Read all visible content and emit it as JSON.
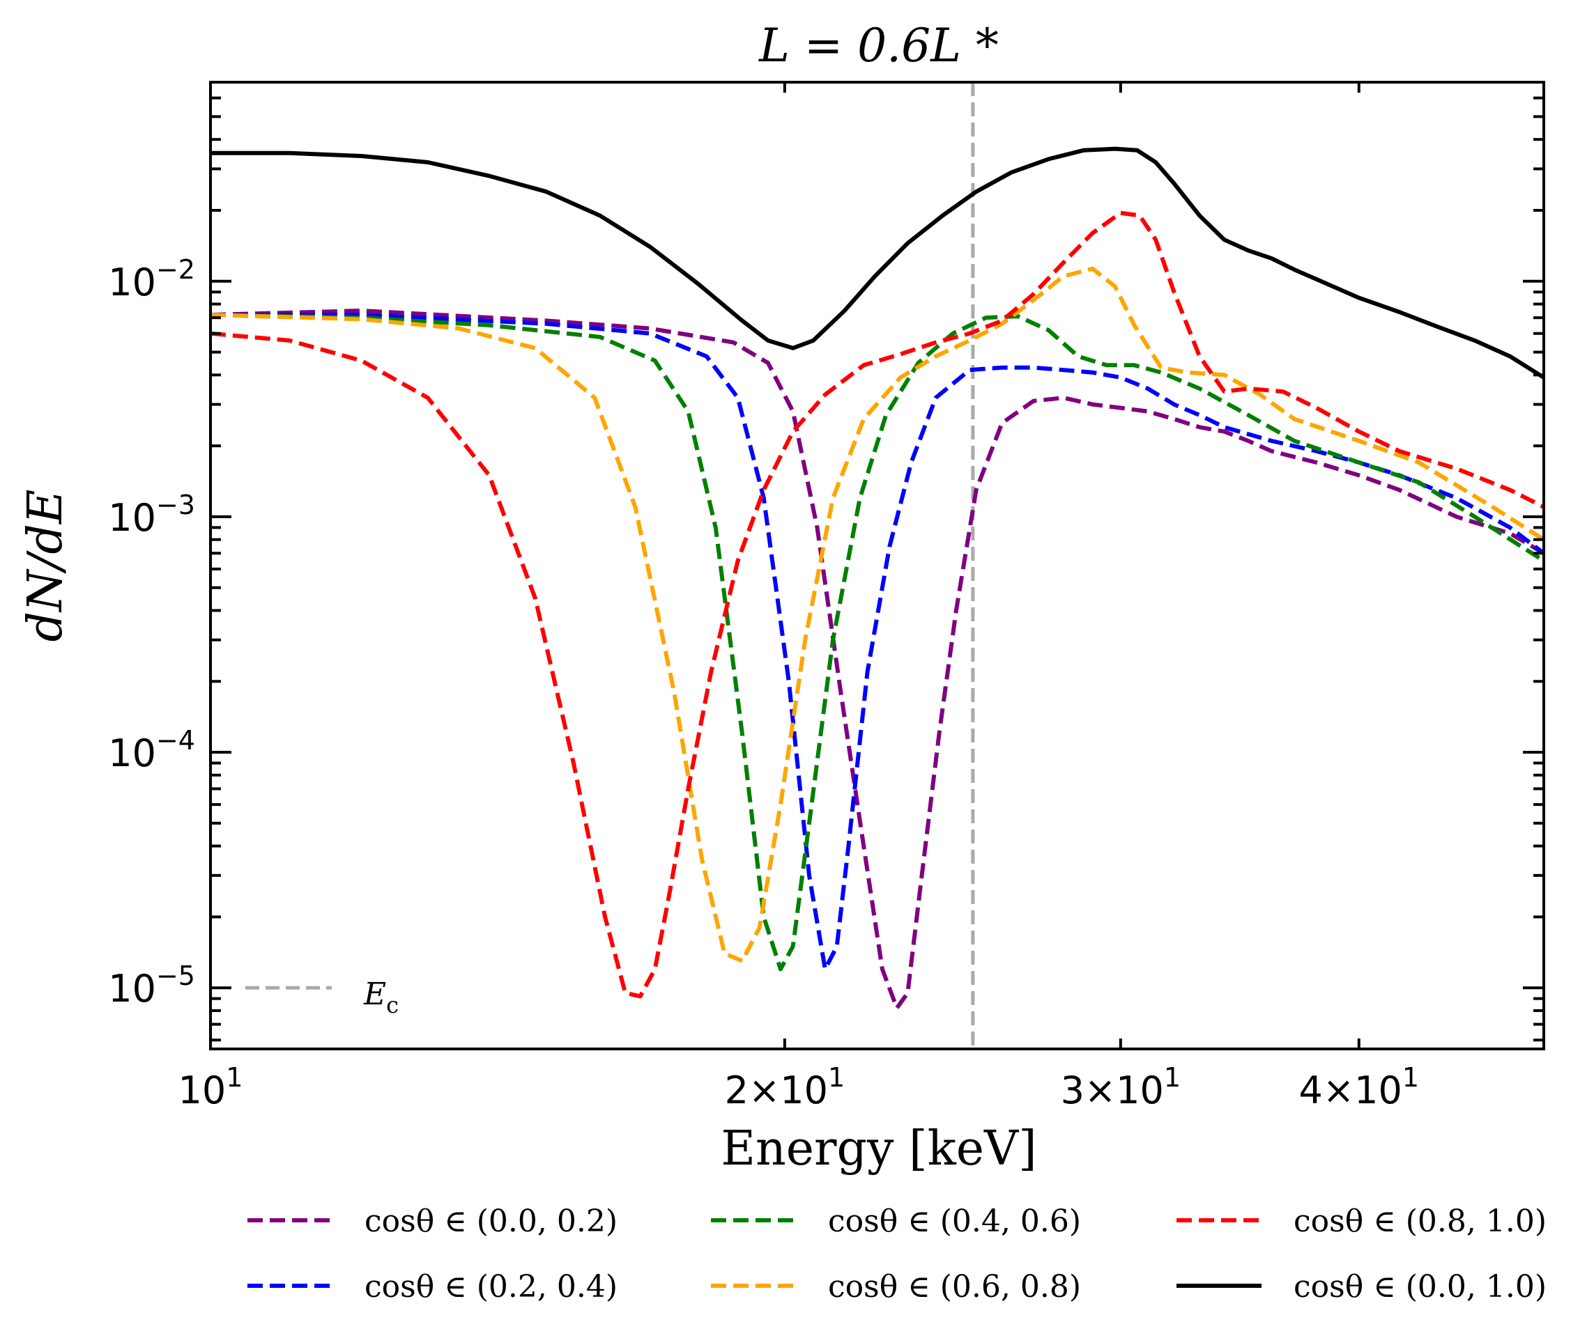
{
  "chart_data": {
    "type": "line",
    "title": "L = 0.6L *",
    "xlabel": "Energy [keV]",
    "ylabel": "dN/dE",
    "xscale": "log",
    "yscale": "log",
    "xlim": [
      10,
      50
    ],
    "ylim": [
      5.5e-06,
      0.07
    ],
    "grid": false,
    "x_ticks": [
      {
        "value": 10,
        "base": "10",
        "exp": "1",
        "coef": ""
      },
      {
        "value": 20,
        "base": "10",
        "exp": "1",
        "coef": "2×"
      },
      {
        "value": 30,
        "base": "10",
        "exp": "1",
        "coef": "3×"
      },
      {
        "value": 40,
        "base": "10",
        "exp": "1",
        "coef": "4×"
      }
    ],
    "y_ticks": [
      {
        "value": 0.01,
        "base": "10",
        "exp": "−2"
      },
      {
        "value": 0.001,
        "base": "10",
        "exp": "−3"
      },
      {
        "value": 0.0001,
        "base": "10",
        "exp": "−4"
      },
      {
        "value": 1e-05,
        "base": "10",
        "exp": "−5"
      }
    ],
    "vline": {
      "x": 25.1,
      "label": "E",
      "label_sub": "c",
      "color": "#aaaaaa"
    },
    "series": [
      {
        "name": "cosθ ∈ (0.0, 0.2)",
        "color": "#800080",
        "dash": true,
        "x": [
          10,
          12,
          15,
          17,
          18.8,
          19.6,
          20.2,
          20.8,
          21.4,
          22,
          22.5,
          22.9,
          23.2,
          23.6,
          24.1,
          24.6,
          25.2,
          26,
          27,
          28,
          29,
          30,
          31,
          32,
          33,
          34,
          35,
          36,
          38,
          40,
          42,
          45,
          48,
          50
        ],
        "y": [
          0.0072,
          0.0075,
          0.0068,
          0.0063,
          0.0055,
          0.0045,
          0.0028,
          0.0009,
          0.00018,
          4e-05,
          1.2e-05,
          8.2e-06,
          9.5e-06,
          3e-05,
          0.00012,
          0.0004,
          0.0013,
          0.0025,
          0.0031,
          0.0032,
          0.003,
          0.0029,
          0.0028,
          0.0026,
          0.0024,
          0.0023,
          0.0021,
          0.0019,
          0.0017,
          0.0015,
          0.0013,
          0.001,
          0.00085,
          0.0007
        ]
      },
      {
        "name": "cosθ ∈ (0.2, 0.4)",
        "color": "#0000ff",
        "dash": true,
        "x": [
          10,
          12,
          15,
          17,
          18.2,
          18.9,
          19.5,
          20.1,
          20.6,
          21.0,
          21.3,
          21.6,
          22.1,
          22.7,
          23.3,
          24,
          25,
          26,
          27,
          28,
          29,
          30,
          31,
          32,
          33,
          34,
          36,
          38,
          40,
          42,
          45,
          48,
          50
        ],
        "y": [
          0.0072,
          0.0072,
          0.0066,
          0.006,
          0.0048,
          0.0032,
          0.0012,
          0.0002,
          3e-05,
          1.2e-05,
          1.5e-05,
          4e-05,
          0.00022,
          0.00075,
          0.0017,
          0.0032,
          0.0042,
          0.0043,
          0.0043,
          0.0042,
          0.0041,
          0.0039,
          0.0035,
          0.003,
          0.0027,
          0.0024,
          0.0021,
          0.0019,
          0.0017,
          0.0015,
          0.0012,
          0.0009,
          0.0007
        ]
      },
      {
        "name": "cosθ ∈ (0.4, 0.6)",
        "color": "#008000",
        "dash": true,
        "x": [
          10,
          12,
          14,
          16,
          17.1,
          17.8,
          18.4,
          19.0,
          19.5,
          19.9,
          20.2,
          20.6,
          21.2,
          21.9,
          22.6,
          23.5,
          24.5,
          25.5,
          26.5,
          27.5,
          28.5,
          29.5,
          30.5,
          31.5,
          33,
          35,
          37,
          40,
          43,
          46,
          50
        ],
        "y": [
          0.0072,
          0.007,
          0.0065,
          0.0058,
          0.0046,
          0.0028,
          0.0009,
          0.00012,
          2e-05,
          1.2e-05,
          1.5e-05,
          5e-05,
          0.0003,
          0.0012,
          0.0027,
          0.0045,
          0.006,
          0.007,
          0.0071,
          0.0062,
          0.0048,
          0.0044,
          0.0044,
          0.0041,
          0.0035,
          0.0027,
          0.0021,
          0.0017,
          0.0014,
          0.001,
          0.00065
        ]
      },
      {
        "name": "cosθ ∈ (0.6, 0.8)",
        "color": "#ffa500",
        "dash": true,
        "x": [
          10,
          12,
          13.5,
          14.8,
          15.9,
          16.7,
          17.5,
          18.1,
          18.6,
          19.0,
          19.4,
          19.9,
          20.5,
          21.2,
          22,
          23,
          24,
          25,
          26,
          27,
          28,
          29,
          29.8,
          30.5,
          31.5,
          32.5,
          34,
          35.5,
          37,
          40,
          43,
          47,
          50
        ],
        "y": [
          0.0072,
          0.0069,
          0.0063,
          0.0052,
          0.0032,
          0.0011,
          0.00018,
          3.5e-05,
          1.4e-05,
          1.3e-05,
          1.8e-05,
          6e-05,
          0.0003,
          0.0012,
          0.0026,
          0.0039,
          0.0048,
          0.0056,
          0.0066,
          0.0083,
          0.0105,
          0.0113,
          0.0095,
          0.0065,
          0.0043,
          0.0041,
          0.004,
          0.0033,
          0.0026,
          0.0021,
          0.0017,
          0.0011,
          0.0008
        ]
      },
      {
        "name": "cosθ ∈ (0.8, 1.0)",
        "color": "#ff0000",
        "dash": true,
        "x": [
          10,
          11,
          12,
          13,
          14,
          14.8,
          15.5,
          16.1,
          16.5,
          16.8,
          17.1,
          17.4,
          17.8,
          18.3,
          18.9,
          19.5,
          20.2,
          21,
          22,
          23,
          24,
          25,
          26,
          27,
          28,
          29,
          30,
          30.7,
          31.3,
          32,
          33,
          34,
          35,
          36.5,
          38,
          40,
          42,
          45,
          48,
          50
        ],
        "y": [
          0.006,
          0.0056,
          0.0046,
          0.0032,
          0.0015,
          0.00045,
          9e-05,
          2e-05,
          9.5e-06,
          9.2e-06,
          1.2e-05,
          2.5e-05,
          7e-05,
          0.00022,
          0.00065,
          0.0013,
          0.0023,
          0.0033,
          0.0044,
          0.0049,
          0.0055,
          0.006,
          0.0068,
          0.0088,
          0.012,
          0.016,
          0.0195,
          0.019,
          0.015,
          0.009,
          0.0048,
          0.0034,
          0.0035,
          0.0034,
          0.0029,
          0.0023,
          0.0019,
          0.0016,
          0.0013,
          0.0011
        ]
      },
      {
        "name": "cosθ ∈ (0.0, 1.0)",
        "color": "#000000",
        "dash": false,
        "x": [
          10,
          11,
          12,
          13,
          14,
          15,
          16,
          17,
          18,
          19,
          19.6,
          20.2,
          20.7,
          21.5,
          22.3,
          23.2,
          24.2,
          25.2,
          26.3,
          27.5,
          28.7,
          29.8,
          30.6,
          31.3,
          32,
          33,
          34,
          35,
          36,
          37,
          38,
          40,
          42,
          44,
          46,
          48,
          50
        ],
        "y": [
          0.035,
          0.035,
          0.034,
          0.032,
          0.028,
          0.024,
          0.019,
          0.014,
          0.0098,
          0.0068,
          0.0056,
          0.0052,
          0.0056,
          0.0075,
          0.0105,
          0.0145,
          0.019,
          0.024,
          0.029,
          0.033,
          0.036,
          0.0365,
          0.036,
          0.032,
          0.026,
          0.019,
          0.015,
          0.0135,
          0.0125,
          0.0112,
          0.0102,
          0.0085,
          0.0074,
          0.0064,
          0.0056,
          0.0048,
          0.0039
        ]
      }
    ]
  }
}
